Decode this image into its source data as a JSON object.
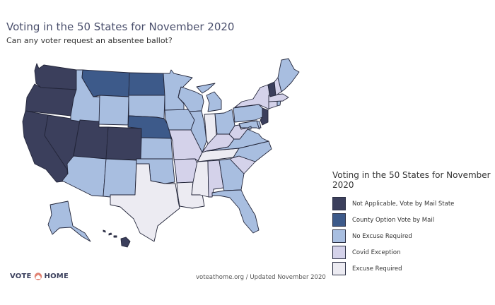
{
  "title": "Voting in the 50 States for November 2020",
  "subtitle": "Can any voter request an absentee ballot?",
  "legend": {
    "title": "Voting in the 50 States for November 2020",
    "items": [
      {
        "label": "Not Applicable, Vote by Mail State",
        "color": "#3b3f5c"
      },
      {
        "label": "County Option Vote by Mail",
        "color": "#3d5a8a"
      },
      {
        "label": "No Excuse Required",
        "color": "#a8bee0"
      },
      {
        "label": "Covid Exception",
        "color": "#d4d2ea"
      },
      {
        "label": "Excuse Required",
        "color": "#ecebf2"
      }
    ]
  },
  "brand": {
    "left": "VOTE",
    "right": "HOME"
  },
  "footer": "voteathome.org / Updated November 2020",
  "categories": {
    "not_applicable": "Not Applicable, Vote by Mail State",
    "county_option": "County Option Vote by Mail",
    "no_excuse": "No Excuse Required",
    "covid": "Covid Exception",
    "excuse": "Excuse Required"
  },
  "states": {
    "WA": "not_applicable",
    "OR": "not_applicable",
    "CA": "not_applicable",
    "NV": "not_applicable",
    "UT": "not_applicable",
    "CO": "not_applicable",
    "HI": "not_applicable",
    "VT": "not_applicable",
    "NJ": "not_applicable",
    "MT": "county_option",
    "ND": "county_option",
    "NE": "county_option",
    "ID": "no_excuse",
    "WY": "no_excuse",
    "AZ": "no_excuse",
    "NM": "no_excuse",
    "SD": "no_excuse",
    "KS": "no_excuse",
    "OK": "no_excuse",
    "MN": "no_excuse",
    "IA": "no_excuse",
    "WI": "no_excuse",
    "IL": "no_excuse",
    "MI": "no_excuse",
    "OH": "no_excuse",
    "PA": "no_excuse",
    "MD": "no_excuse",
    "VA": "no_excuse",
    "NC": "no_excuse",
    "GA": "no_excuse",
    "FL": "no_excuse",
    "ME": "no_excuse",
    "AK": "no_excuse",
    "RI": "no_excuse",
    "DE": "no_excuse",
    "DC": "no_excuse",
    "MO": "covid",
    "KY": "covid",
    "WV": "covid",
    "SC": "covid",
    "AL": "covid",
    "AR": "covid",
    "NY": "covid",
    "NH": "covid",
    "MA": "covid",
    "CT": "covid",
    "TX": "excuse",
    "LA": "excuse",
    "MS": "excuse",
    "TN": "excuse",
    "IN": "excuse"
  }
}
